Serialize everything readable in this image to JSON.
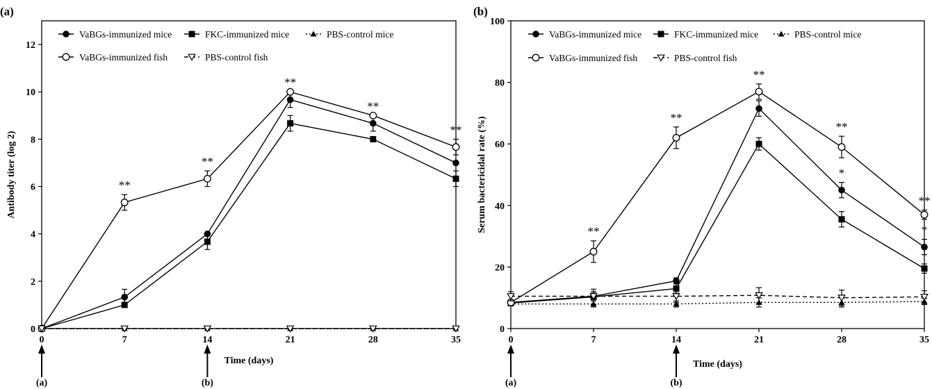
{
  "chart_data": [
    {
      "type": "line",
      "panel_label": "(a)",
      "xlabel": "Time (days)",
      "ylabel": "Antibody titer (log 2)",
      "x": [
        0,
        7,
        14,
        21,
        28,
        35
      ],
      "xticks": [
        "0",
        "7",
        "14",
        "21",
        "28",
        "35"
      ],
      "yticks": [
        "0",
        "2",
        "4",
        "6",
        "8",
        "10",
        "12"
      ],
      "xlim": [
        0,
        35
      ],
      "ylim": [
        0,
        13
      ],
      "grid": false,
      "legend_position": "top",
      "legend_rows": [
        [
          "VaBGs-immunized mice",
          "FKC-immunized mice",
          "PBS-control mice"
        ],
        [
          "VaBGs-immunized fish",
          "PBS-control fish"
        ]
      ],
      "series": [
        {
          "name": "VaBGs-immunized mice",
          "marker": "filled-circle",
          "line": "solid",
          "values": [
            0,
            1.33,
            4.0,
            9.67,
            8.67,
            7.0
          ],
          "errors": [
            0,
            0.33,
            0,
            0.33,
            0.33,
            0
          ]
        },
        {
          "name": "FKC-immunized mice",
          "marker": "filled-square",
          "line": "solid",
          "values": [
            0,
            1.0,
            3.67,
            8.67,
            8.0,
            6.33
          ],
          "errors": [
            0,
            0,
            0.33,
            0.33,
            0,
            0.33
          ]
        },
        {
          "name": "PBS-control mice",
          "marker": "filled-triangle",
          "line": "dotted",
          "values": [
            0,
            0,
            0,
            0,
            0,
            0
          ],
          "errors": [
            0,
            0,
            0,
            0,
            0,
            0
          ]
        },
        {
          "name": "VaBGs-immunized fish",
          "marker": "open-circle",
          "line": "solid",
          "values": [
            0,
            5.33,
            6.33,
            10.0,
            9.0,
            7.67
          ],
          "errors": [
            0,
            0.33,
            0.33,
            0,
            0,
            0.33
          ]
        },
        {
          "name": "PBS-control fish",
          "marker": "open-triangle-down",
          "line": "dashed",
          "values": [
            0,
            0,
            0,
            0,
            0,
            0
          ],
          "errors": [
            0,
            0,
            0,
            0,
            0,
            0
          ]
        }
      ],
      "annotations": [
        {
          "x": 7,
          "y": 5.33,
          "text": "**"
        },
        {
          "x": 14,
          "y": 6.33,
          "text": "**"
        },
        {
          "x": 21,
          "y": 10.0,
          "text": "**"
        },
        {
          "x": 28,
          "y": 9.0,
          "text": "**"
        },
        {
          "x": 35,
          "y": 7.67,
          "text": "**"
        }
      ],
      "arrows": [
        {
          "x": 0,
          "label": "(a)"
        },
        {
          "x": 14,
          "label": "(b)"
        }
      ]
    },
    {
      "type": "line",
      "panel_label": "(b)",
      "xlabel": "Time (days)",
      "ylabel": "Serum bactericidal rate (%)",
      "x": [
        0,
        7,
        14,
        21,
        28,
        35
      ],
      "xticks": [
        "0",
        "7",
        "14",
        "21",
        "28",
        "35"
      ],
      "yticks": [
        "0",
        "20",
        "40",
        "60",
        "80",
        "100"
      ],
      "xlim": [
        0,
        35
      ],
      "ylim": [
        0,
        100
      ],
      "grid": false,
      "legend_position": "top",
      "legend_rows": [
        [
          "VaBGs-immunized mice",
          "FKC-immunized mice",
          "PBS-control mice"
        ],
        [
          "VaBGs-immunized fish",
          "PBS-control fish"
        ]
      ],
      "series": [
        {
          "name": "VaBGs-immunized mice",
          "marker": "filled-circle",
          "line": "solid",
          "values": [
            8.5,
            10.5,
            15.5,
            71.5,
            45.0,
            26.5
          ],
          "errors": [
            0.8,
            1.0,
            1.0,
            2.5,
            2.5,
            2.5
          ]
        },
        {
          "name": "FKC-immunized mice",
          "marker": "filled-square",
          "line": "solid",
          "values": [
            8.3,
            10.3,
            13.0,
            60.0,
            35.5,
            19.5
          ],
          "errors": [
            0.8,
            2.5,
            1.5,
            2.0,
            2.5,
            1.5
          ]
        },
        {
          "name": "PBS-control mice",
          "marker": "filled-triangle",
          "line": "dotted",
          "values": [
            8.0,
            8.0,
            8.0,
            8.5,
            8.5,
            8.8
          ],
          "errors": [
            0.5,
            1.0,
            1.0,
            1.5,
            1.5,
            1.0
          ]
        },
        {
          "name": "VaBGs-immunized fish",
          "marker": "open-circle",
          "line": "solid",
          "values": [
            8.5,
            25.0,
            62.0,
            77.0,
            59.0,
            37.0
          ],
          "errors": [
            0.8,
            3.5,
            3.5,
            2.5,
            3.5,
            1.5
          ]
        },
        {
          "name": "PBS-control fish",
          "marker": "open-triangle-down",
          "line": "dashed",
          "values": [
            10.5,
            10.5,
            10.5,
            10.8,
            10.0,
            10.3
          ],
          "errors": [
            1.5,
            1.5,
            2.0,
            2.5,
            2.5,
            2.0
          ]
        }
      ],
      "annotations": [
        {
          "x": 7,
          "y": 25.0,
          "text": "**"
        },
        {
          "x": 14,
          "y": 62.0,
          "text": "**"
        },
        {
          "x": 21,
          "y": 77.0,
          "text": "**"
        },
        {
          "x": 28,
          "y": 59.0,
          "text": "**"
        },
        {
          "x": 28,
          "y": 45.0,
          "text": "*"
        },
        {
          "x": 35,
          "y": 37.0,
          "text": "**"
        },
        {
          "x": 35,
          "y": 26.5,
          "text": "*"
        }
      ],
      "arrows": [
        {
          "x": 0,
          "label": "(a)"
        },
        {
          "x": 14,
          "label": "(b)"
        }
      ]
    }
  ]
}
